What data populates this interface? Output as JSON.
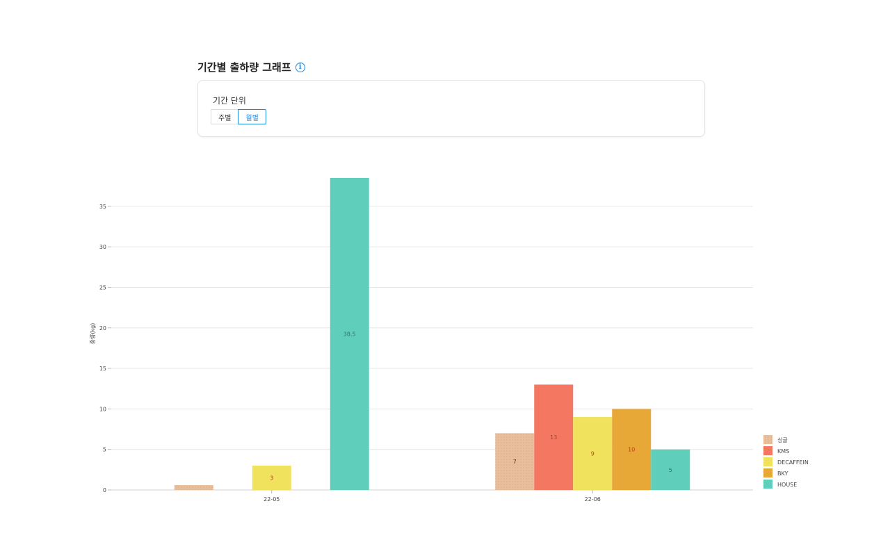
{
  "header": {
    "title": "기간별 출하량 그래프",
    "info_icon": "info-icon"
  },
  "filter": {
    "label": "기간 단위",
    "options": [
      {
        "label": "주별",
        "active": false
      },
      {
        "label": "월별",
        "active": true
      }
    ]
  },
  "chart_data": {
    "type": "bar",
    "categories": [
      "22-05",
      "22-06"
    ],
    "ylabel": "중량(kg)",
    "xlabel": "",
    "ylim": [
      0,
      38.5
    ],
    "yticks": [
      0,
      5,
      10,
      15,
      20,
      25,
      30,
      35
    ],
    "grid": true,
    "legend_position": "right-bottom",
    "series": [
      {
        "name": "싱글",
        "values": [
          0.6,
          7
        ],
        "labels": [
          "",
          "7"
        ],
        "color": "#e8bf9c",
        "label_color": "#444444",
        "pattern": "dotted"
      },
      {
        "name": "KMS",
        "values": [
          0,
          13
        ],
        "labels": [
          "",
          "13"
        ],
        "color": "#f47861",
        "label_color": "#9a4a30"
      },
      {
        "name": "DECAFFEIN",
        "values": [
          3,
          9
        ],
        "labels": [
          "3",
          "9"
        ],
        "color": "#f0e25c",
        "label_color": "#c0392b"
      },
      {
        "name": "BKY",
        "values": [
          0,
          10
        ],
        "labels": [
          "",
          "10"
        ],
        "color": "#e8a838",
        "label_color": "#c0392b"
      },
      {
        "name": "HOUSE",
        "values": [
          38.5,
          5
        ],
        "labels": [
          "38.5",
          "5"
        ],
        "color": "#5fcfbb",
        "label_color": "#2f6f66"
      }
    ]
  }
}
